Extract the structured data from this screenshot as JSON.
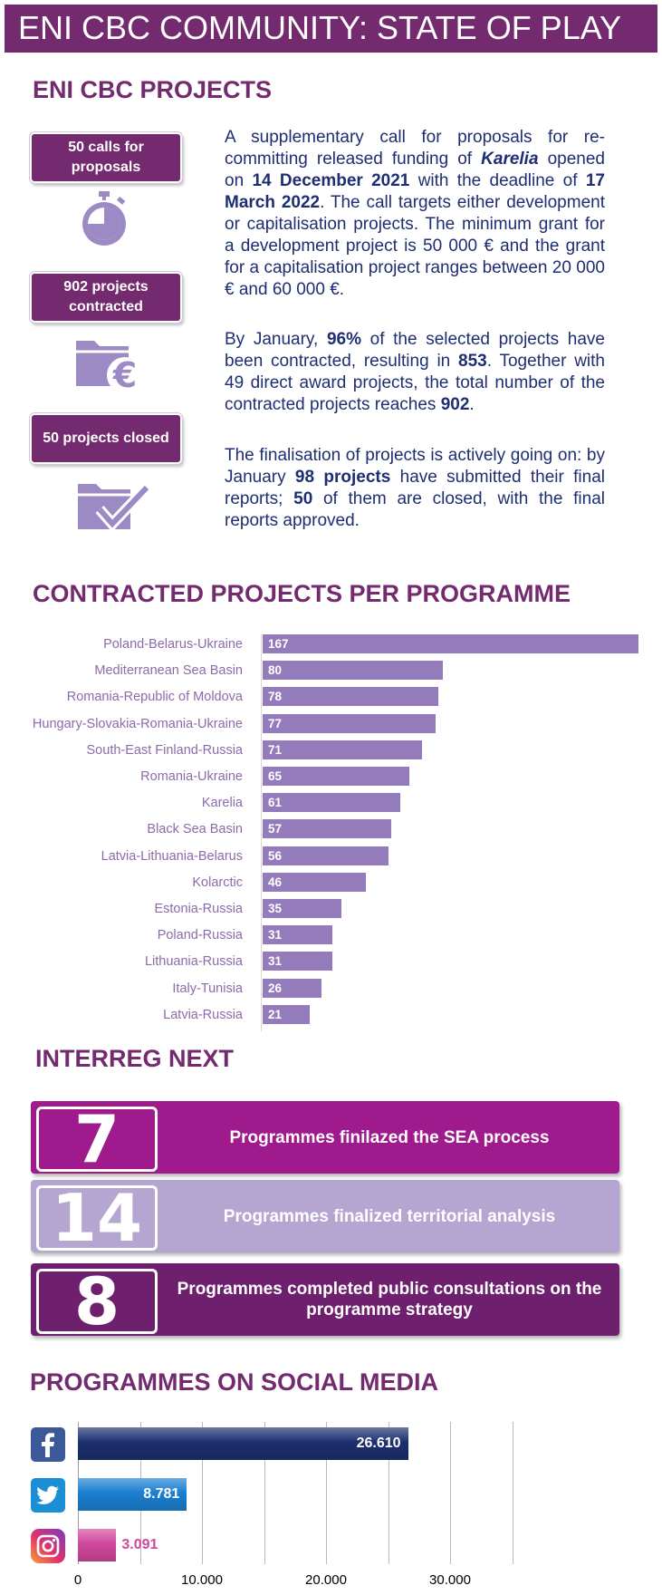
{
  "header": {
    "title": "ENI CBC COMMUNITY: STATE OF PLAY"
  },
  "projects": {
    "heading": "ENI CBC PROJECTS",
    "pills": [
      {
        "label": "50 calls for proposals",
        "icon": "stopwatch-icon"
      },
      {
        "label": "902 projects contracted",
        "icon": "folder-euro-icon"
      },
      {
        "label": "50 projects closed",
        "icon": "folder-check-icon"
      }
    ],
    "paragraphs": [
      [
        {
          "t": "A supplementary call for proposals for re-committing released funding of "
        },
        {
          "t": "Karelia",
          "s": "bi"
        },
        {
          "t": " opened on "
        },
        {
          "t": "14 December 2021",
          "s": "b"
        },
        {
          "t": " with the deadline of "
        },
        {
          "t": "17 March 2022",
          "s": "b"
        },
        {
          "t": ". The call targets either development or capitalisation projects. The minimum grant for a development project is 50 000 € and the grant for a capitalisation project ranges between 20 000 € and 60 000 €."
        }
      ],
      [
        {
          "t": "By January, "
        },
        {
          "t": "96%",
          "s": "b"
        },
        {
          "t": " of the selected projects have been contracted, resulting in "
        },
        {
          "t": "853",
          "s": "b"
        },
        {
          "t": ". Together with 49 direct award projects, the total number of the contracted projects reaches "
        },
        {
          "t": "902",
          "s": "b"
        },
        {
          "t": "."
        }
      ],
      [
        {
          "t": "The finalisation of projects is actively going on: by January "
        },
        {
          "t": "98 projects",
          "s": "b"
        },
        {
          "t": " have submitted their final reports; "
        },
        {
          "t": "50",
          "s": "b"
        },
        {
          "t": " of them are closed, with the final reports approved."
        }
      ]
    ]
  },
  "chart_data": [
    {
      "type": "bar",
      "orientation": "horizontal",
      "title": "CONTRACTED PROJECTS PER PROGRAMME",
      "categories": [
        "Poland-Belarus-Ukraine",
        "Mediterranean Sea Basin",
        "Romania-Republic of Moldova",
        "Hungary-Slovakia-Romania-Ukraine",
        "South-East Finland-Russia",
        "Romania-Ukraine",
        "Karelia",
        "Black Sea Basin",
        "Latvia-Lithuania-Belarus",
        "Kolarctic",
        "Estonia-Russia",
        "Poland-Russia",
        "Lithuania-Russia",
        "Italy-Tunisia",
        "Latvia-Russia"
      ],
      "values": [
        167,
        80,
        78,
        77,
        71,
        65,
        61,
        57,
        56,
        46,
        35,
        31,
        31,
        26,
        21
      ],
      "bar_color": "#947cbc",
      "label_color": "#8d6aa9"
    },
    {
      "type": "bar",
      "orientation": "horizontal",
      "title": "PROGRAMMES ON SOCIAL MEDIA",
      "categories": [
        "Facebook",
        "Twitter",
        "Instagram"
      ],
      "icons": [
        "facebook-icon",
        "twitter-icon",
        "instagram-icon"
      ],
      "values": [
        26610,
        8781,
        3091
      ],
      "value_labels": [
        "26.610",
        "8.781",
        "3.091"
      ],
      "colors": [
        "#1c2f6e",
        "#1a7fd1",
        "#d0479c"
      ],
      "xlim": [
        0,
        40000
      ],
      "xticks": [
        "0",
        "10.000",
        "20.000",
        "30.000"
      ],
      "grid": true
    }
  ],
  "interreg": {
    "heading": "INTERREG NEXT",
    "items": [
      {
        "number": "7",
        "text": "Programmes finilazed the SEA process",
        "color": "#9e1a8d"
      },
      {
        "number": "14",
        "text": "Programmes finalized territorial analysis",
        "color": "#b5a6d1"
      },
      {
        "number": "8",
        "text": "Programmes completed public consultations on the programme strategy",
        "color": "#6e1f6e"
      }
    ]
  }
}
